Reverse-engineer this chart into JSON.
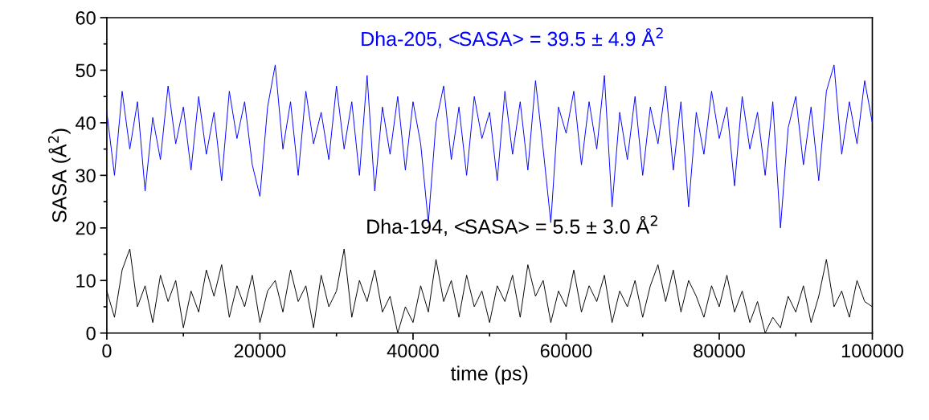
{
  "chart_data": {
    "type": "line",
    "xlabel": "time (ps)",
    "ylabel": "SASA (Å$^{2}$)",
    "xlim": [
      0,
      100000
    ],
    "ylim": [
      0,
      60
    ],
    "xticks": [
      0,
      20000,
      40000,
      60000,
      80000,
      100000
    ],
    "yticks": [
      0,
      10,
      20,
      30,
      40,
      50,
      60
    ],
    "grid": false,
    "legend": false,
    "marker": "none",
    "line_style": "solid",
    "x": [
      0,
      1000,
      2000,
      3000,
      4000,
      5000,
      6000,
      7000,
      8000,
      9000,
      10000,
      11000,
      12000,
      13000,
      14000,
      15000,
      16000,
      17000,
      18000,
      19000,
      20000,
      21000,
      22000,
      23000,
      24000,
      25000,
      26000,
      27000,
      28000,
      29000,
      30000,
      31000,
      32000,
      33000,
      34000,
      35000,
      36000,
      37000,
      38000,
      39000,
      40000,
      41000,
      42000,
      43000,
      44000,
      45000,
      46000,
      47000,
      48000,
      49000,
      50000,
      51000,
      52000,
      53000,
      54000,
      55000,
      56000,
      57000,
      58000,
      59000,
      60000,
      61000,
      62000,
      63000,
      64000,
      65000,
      66000,
      67000,
      68000,
      69000,
      70000,
      71000,
      72000,
      73000,
      74000,
      75000,
      76000,
      77000,
      78000,
      79000,
      80000,
      81000,
      82000,
      83000,
      84000,
      85000,
      86000,
      87000,
      88000,
      89000,
      90000,
      91000,
      92000,
      93000,
      94000,
      95000,
      96000,
      97000,
      98000,
      99000,
      100000
    ],
    "series": [
      {
        "name": "Dha-205, <SASA> = 39.5 ± 4.9 Å$^{2}$",
        "color": "#0000ff",
        "values": [
          42,
          30,
          46,
          35,
          44,
          27,
          41,
          33,
          47,
          36,
          43,
          31,
          45,
          34,
          42,
          29,
          46,
          37,
          44,
          32,
          26,
          43,
          51,
          35,
          44,
          30,
          46,
          36,
          42,
          33,
          47,
          35,
          44,
          30,
          49,
          27,
          43,
          34,
          45,
          31,
          44,
          36,
          21,
          40,
          47,
          33,
          43,
          30,
          45,
          37,
          42,
          29,
          46,
          34,
          44,
          31,
          48,
          35,
          21,
          43,
          38,
          46,
          32,
          44,
          35,
          49,
          24,
          42,
          33,
          45,
          30,
          43,
          36,
          47,
          31,
          44,
          24,
          42,
          34,
          46,
          37,
          43,
          28,
          45,
          35,
          42,
          30,
          44,
          20,
          39,
          45,
          32,
          43,
          29,
          46,
          51,
          34,
          44,
          36,
          48,
          40
        ]
      },
      {
        "name": "Dha-194, <SASA> = 5.5 ± 3.0 Å$^{2}$",
        "color": "#000000",
        "values": [
          8,
          3,
          12,
          16,
          5,
          9,
          2,
          11,
          6,
          10,
          1,
          8,
          4,
          12,
          7,
          13,
          3,
          9,
          5,
          11,
          2,
          8,
          10,
          4,
          12,
          6,
          9,
          1,
          11,
          5,
          8,
          16,
          3,
          10,
          6,
          12,
          4,
          7,
          0,
          5,
          2,
          9,
          4,
          14,
          6,
          10,
          3,
          11,
          5,
          8,
          2,
          9,
          6,
          11,
          3,
          13,
          7,
          10,
          2,
          8,
          5,
          12,
          4,
          9,
          6,
          11,
          2,
          8,
          5,
          10,
          3,
          9,
          13,
          6,
          12,
          4,
          10,
          7,
          3,
          9,
          5,
          11,
          4,
          8,
          2,
          6,
          0,
          3,
          1,
          7,
          4,
          9,
          2,
          7,
          14,
          5,
          8,
          3,
          10,
          6,
          5
        ]
      }
    ]
  }
}
